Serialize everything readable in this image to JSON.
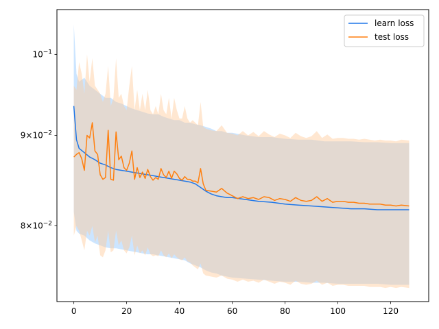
{
  "chart_data": {
    "type": "line",
    "title": "",
    "xlabel": "",
    "ylabel": "",
    "yscale": "log",
    "xlim": [
      -6.4,
      134.4
    ],
    "ylim": [
      0.0725,
      0.106
    ],
    "xticks": [
      {
        "value": 0,
        "label": "0"
      },
      {
        "value": 20,
        "label": "20"
      },
      {
        "value": 40,
        "label": "40"
      },
      {
        "value": 60,
        "label": "60"
      },
      {
        "value": 80,
        "label": "80"
      },
      {
        "value": 100,
        "label": "100"
      },
      {
        "value": 120,
        "label": "120"
      }
    ],
    "yticks": [
      {
        "value": 0.08,
        "base": "8",
        "mult": "×10",
        "exp": "−2"
      },
      {
        "value": 0.09,
        "base": "9",
        "mult": "×10",
        "exp": "−2"
      },
      {
        "value": 0.1,
        "base": "",
        "mult": "10",
        "exp": "−1"
      }
    ],
    "legend": {
      "position": "upper-right"
    },
    "series": [
      {
        "name": "learn loss",
        "color": "#1f77e8",
        "band_color": "#99ccff",
        "x": [
          0,
          1,
          2,
          4,
          6,
          8,
          10,
          12,
          14,
          16,
          18,
          20,
          22,
          24,
          26,
          28,
          30,
          32,
          34,
          36,
          38,
          40,
          42,
          44,
          46,
          48,
          50,
          52,
          54,
          56,
          58,
          60,
          65,
          70,
          75,
          80,
          85,
          90,
          95,
          100,
          105,
          110,
          115,
          120,
          127
        ],
        "values": [
          0.0935,
          0.0895,
          0.0885,
          0.088,
          0.0875,
          0.0872,
          0.0868,
          0.0866,
          0.0863,
          0.0861,
          0.086,
          0.0859,
          0.0858,
          0.0857,
          0.0856,
          0.0855,
          0.0854,
          0.0853,
          0.0852,
          0.0851,
          0.085,
          0.0849,
          0.0848,
          0.0847,
          0.0845,
          0.0841,
          0.0837,
          0.0834,
          0.0832,
          0.0831,
          0.083,
          0.083,
          0.0828,
          0.0826,
          0.0825,
          0.0823,
          0.0822,
          0.0821,
          0.082,
          0.0819,
          0.0818,
          0.0818,
          0.0817,
          0.0817,
          0.0817
        ],
        "upper": [
          0.104,
          0.0975,
          0.0965,
          0.097,
          0.096,
          0.0955,
          0.095,
          0.0945,
          0.0945,
          0.094,
          0.0938,
          0.0935,
          0.0932,
          0.093,
          0.0928,
          0.0926,
          0.0925,
          0.0925,
          0.0922,
          0.092,
          0.0918,
          0.0918,
          0.0915,
          0.0915,
          0.0913,
          0.0912,
          0.091,
          0.0908,
          0.0905,
          0.0905,
          0.0903,
          0.0903,
          0.09,
          0.0898,
          0.0898,
          0.0896,
          0.0895,
          0.0895,
          0.0893,
          0.0893,
          0.0893,
          0.0892,
          0.0892,
          0.0891,
          0.0891
        ],
        "lower": [
          0.0815,
          0.0795,
          0.0792,
          0.079,
          0.0785,
          0.0782,
          0.078,
          0.0778,
          0.0777,
          0.0777,
          0.0776,
          0.0775,
          0.0774,
          0.0773,
          0.0772,
          0.0771,
          0.0771,
          0.077,
          0.0769,
          0.0768,
          0.0767,
          0.0766,
          0.0765,
          0.0762,
          0.076,
          0.0758,
          0.0755,
          0.0753,
          0.0752,
          0.075,
          0.0749,
          0.0748,
          0.0747,
          0.0746,
          0.0745,
          0.0744,
          0.0744,
          0.0743,
          0.0743,
          0.0742,
          0.0742,
          0.0742,
          0.0742,
          0.0741,
          0.0741
        ]
      },
      {
        "name": "test loss",
        "color": "#ff7f0e",
        "band_color": "#ffc999",
        "x": [
          0,
          1,
          2,
          3,
          4,
          5,
          6,
          7,
          8,
          9,
          10,
          11,
          12,
          13,
          14,
          15,
          16,
          17,
          18,
          19,
          20,
          21,
          22,
          23,
          24,
          25,
          26,
          27,
          28,
          29,
          30,
          31,
          32,
          33,
          34,
          35,
          36,
          37,
          38,
          39,
          40,
          41,
          42,
          43,
          44,
          45,
          46,
          47,
          48,
          49,
          50,
          52,
          54,
          56,
          58,
          60,
          62,
          64,
          66,
          68,
          70,
          72,
          74,
          76,
          78,
          80,
          82,
          84,
          86,
          88,
          90,
          92,
          94,
          96,
          98,
          100,
          102,
          104,
          106,
          108,
          110,
          112,
          114,
          116,
          118,
          120,
          122,
          124,
          127
        ],
        "values": [
          0.0875,
          0.0878,
          0.088,
          0.0873,
          0.086,
          0.09,
          0.0897,
          0.0915,
          0.0882,
          0.0878,
          0.0855,
          0.085,
          0.0852,
          0.0906,
          0.085,
          0.0849,
          0.0904,
          0.0872,
          0.0876,
          0.0863,
          0.086,
          0.0868,
          0.0882,
          0.085,
          0.0863,
          0.0852,
          0.0858,
          0.0851,
          0.0861,
          0.0853,
          0.0849,
          0.0852,
          0.085,
          0.0862,
          0.0855,
          0.0852,
          0.0859,
          0.0851,
          0.0859,
          0.0856,
          0.0851,
          0.0849,
          0.0853,
          0.085,
          0.085,
          0.0848,
          0.0848,
          0.0846,
          0.0862,
          0.0845,
          0.0838,
          0.0837,
          0.0836,
          0.084,
          0.0835,
          0.0832,
          0.0829,
          0.0831,
          0.0829,
          0.083,
          0.0828,
          0.0831,
          0.083,
          0.0827,
          0.0829,
          0.0828,
          0.0826,
          0.083,
          0.0827,
          0.0826,
          0.0827,
          0.0831,
          0.0826,
          0.0829,
          0.0825,
          0.0826,
          0.0826,
          0.0825,
          0.0825,
          0.0824,
          0.0824,
          0.0823,
          0.0823,
          0.0823,
          0.0822,
          0.0822,
          0.0821,
          0.0822,
          0.0821
        ],
        "upper": [
          0.096,
          0.0955,
          0.099,
          0.0975,
          0.095,
          0.1,
          0.0965,
          0.0995,
          0.096,
          0.0955,
          0.095,
          0.094,
          0.095,
          0.0985,
          0.0935,
          0.0945,
          0.0995,
          0.0945,
          0.095,
          0.0935,
          0.093,
          0.096,
          0.0985,
          0.093,
          0.0955,
          0.093,
          0.095,
          0.093,
          0.0955,
          0.093,
          0.0925,
          0.0935,
          0.0925,
          0.095,
          0.093,
          0.0925,
          0.0945,
          0.092,
          0.0945,
          0.093,
          0.092,
          0.092,
          0.0935,
          0.092,
          0.0915,
          0.0918,
          0.0915,
          0.0912,
          0.094,
          0.091,
          0.0908,
          0.0906,
          0.0905,
          0.0912,
          0.0903,
          0.0902,
          0.09,
          0.0905,
          0.09,
          0.0904,
          0.0899,
          0.0905,
          0.0901,
          0.0898,
          0.0902,
          0.09,
          0.0897,
          0.0903,
          0.0899,
          0.0897,
          0.0899,
          0.0905,
          0.0897,
          0.0901,
          0.0896,
          0.0897,
          0.0897,
          0.0896,
          0.0896,
          0.0895,
          0.0896,
          0.0895,
          0.0894,
          0.0895,
          0.0894,
          0.0894,
          0.0893,
          0.0895,
          0.0894
        ],
        "lower": [
          0.079,
          0.08,
          0.0795,
          0.0785,
          0.0775,
          0.0795,
          0.079,
          0.08,
          0.0783,
          0.079,
          0.077,
          0.0768,
          0.0775,
          0.0795,
          0.0773,
          0.0775,
          0.0795,
          0.078,
          0.0785,
          0.0775,
          0.0772,
          0.0778,
          0.079,
          0.077,
          0.078,
          0.0772,
          0.0775,
          0.077,
          0.0778,
          0.0771,
          0.0769,
          0.077,
          0.0769,
          0.0775,
          0.077,
          0.0768,
          0.0772,
          0.0767,
          0.0771,
          0.0768,
          0.0766,
          0.0765,
          0.0768,
          0.0764,
          0.0763,
          0.076,
          0.0758,
          0.0756,
          0.0762,
          0.0752,
          0.075,
          0.0749,
          0.0748,
          0.075,
          0.0747,
          0.0746,
          0.0744,
          0.0746,
          0.0744,
          0.0745,
          0.0743,
          0.0746,
          0.0744,
          0.0742,
          0.0744,
          0.0743,
          0.0741,
          0.0745,
          0.0742,
          0.0741,
          0.0742,
          0.0745,
          0.0741,
          0.0743,
          0.074,
          0.0741,
          0.0741,
          0.074,
          0.074,
          0.074,
          0.074,
          0.0739,
          0.0739,
          0.0739,
          0.0738,
          0.0739,
          0.0738,
          0.0739,
          0.0738
        ]
      }
    ]
  }
}
